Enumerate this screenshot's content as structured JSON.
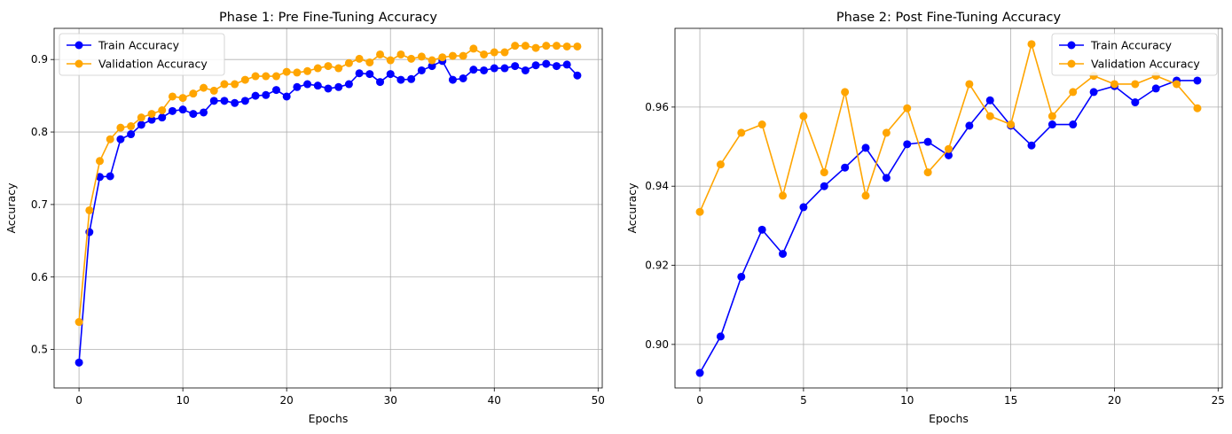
{
  "chart_data": [
    {
      "type": "line",
      "title": "Phase 1: Pre Fine-Tuning Accuracy",
      "xlabel": "Epochs",
      "ylabel": "Accuracy",
      "xlim": [
        -2.4,
        50.4
      ],
      "ylim": [
        0.447,
        0.943
      ],
      "xticks": [
        0,
        10,
        20,
        30,
        40,
        50
      ],
      "xtick_labels": [
        "0",
        "10",
        "20",
        "30",
        "40",
        "50"
      ],
      "yticks": [
        0.5,
        0.6,
        0.7,
        0.8,
        0.9
      ],
      "ytick_labels": [
        "0.5",
        "0.6",
        "0.7",
        "0.8",
        "0.9"
      ],
      "grid": true,
      "legend_position": "top-left",
      "x": [
        0,
        1,
        2,
        3,
        4,
        5,
        6,
        7,
        8,
        9,
        10,
        11,
        12,
        13,
        14,
        15,
        16,
        17,
        18,
        19,
        20,
        21,
        22,
        23,
        24,
        25,
        26,
        27,
        28,
        29,
        30,
        31,
        32,
        33,
        34,
        35,
        36,
        37,
        38,
        39,
        40,
        41,
        42,
        43,
        44,
        45,
        46,
        47,
        48
      ],
      "series": [
        {
          "name": "Train Accuracy",
          "color": "#0000ff",
          "values": [
            0.482,
            0.662,
            0.738,
            0.739,
            0.79,
            0.797,
            0.81,
            0.817,
            0.82,
            0.829,
            0.831,
            0.825,
            0.827,
            0.843,
            0.843,
            0.84,
            0.843,
            0.85,
            0.851,
            0.858,
            0.849,
            0.862,
            0.866,
            0.864,
            0.86,
            0.862,
            0.866,
            0.881,
            0.88,
            0.869,
            0.88,
            0.872,
            0.873,
            0.885,
            0.891,
            0.898,
            0.872,
            0.874,
            0.886,
            0.885,
            0.888,
            0.888,
            0.891,
            0.885,
            0.892,
            0.894,
            0.891,
            0.893,
            0.878
          ]
        },
        {
          "name": "Validation Accuracy",
          "color": "#ffa500",
          "values": [
            0.538,
            0.692,
            0.76,
            0.79,
            0.806,
            0.808,
            0.82,
            0.825,
            0.83,
            0.849,
            0.847,
            0.853,
            0.861,
            0.857,
            0.866,
            0.866,
            0.872,
            0.877,
            0.877,
            0.877,
            0.883,
            0.882,
            0.884,
            0.888,
            0.891,
            0.888,
            0.895,
            0.901,
            0.896,
            0.907,
            0.899,
            0.907,
            0.901,
            0.904,
            0.899,
            0.903,
            0.905,
            0.905,
            0.915,
            0.907,
            0.91,
            0.91,
            0.919,
            0.919,
            0.916,
            0.919,
            0.919,
            0.918,
            0.918
          ]
        }
      ]
    },
    {
      "type": "line",
      "title": "Phase 2: Post Fine-Tuning Accuracy",
      "xlabel": "Epochs",
      "ylabel": "Accuracy",
      "xlim": [
        -1.2,
        25.2
      ],
      "ylim": [
        0.889,
        0.9799
      ],
      "xticks": [
        0,
        5,
        10,
        15,
        20,
        25
      ],
      "xtick_labels": [
        "0",
        "5",
        "10",
        "15",
        "20",
        "25"
      ],
      "yticks": [
        0.9,
        0.92,
        0.94,
        0.96
      ],
      "ytick_labels": [
        "0.90",
        "0.92",
        "0.94",
        "0.96"
      ],
      "grid": true,
      "legend_position": "top-right",
      "x": [
        0,
        1,
        2,
        3,
        4,
        5,
        6,
        7,
        8,
        9,
        10,
        11,
        12,
        13,
        14,
        15,
        16,
        17,
        18,
        19,
        20,
        21,
        22,
        23,
        24
      ],
      "series": [
        {
          "name": "Train Accuracy",
          "color": "#0000ff",
          "values": [
            0.8928,
            0.902,
            0.9171,
            0.929,
            0.9229,
            0.9347,
            0.94,
            0.9447,
            0.9497,
            0.9421,
            0.9506,
            0.9512,
            0.9478,
            0.9553,
            0.9617,
            0.9553,
            0.9503,
            0.9556,
            0.9556,
            0.9638,
            0.9653,
            0.9612,
            0.9647,
            0.9667,
            0.9667
          ]
        },
        {
          "name": "Validation Accuracy",
          "color": "#ffa500",
          "values": [
            0.9335,
            0.9455,
            0.9535,
            0.9556,
            0.9376,
            0.9577,
            0.9435,
            0.9638,
            0.9376,
            0.9535,
            0.9597,
            0.9435,
            0.9494,
            0.9658,
            0.9577,
            0.9556,
            0.9759,
            0.9577,
            0.9638,
            0.9679,
            0.9658,
            0.9658,
            0.9679,
            0.9658,
            0.9597
          ]
        }
      ]
    }
  ]
}
